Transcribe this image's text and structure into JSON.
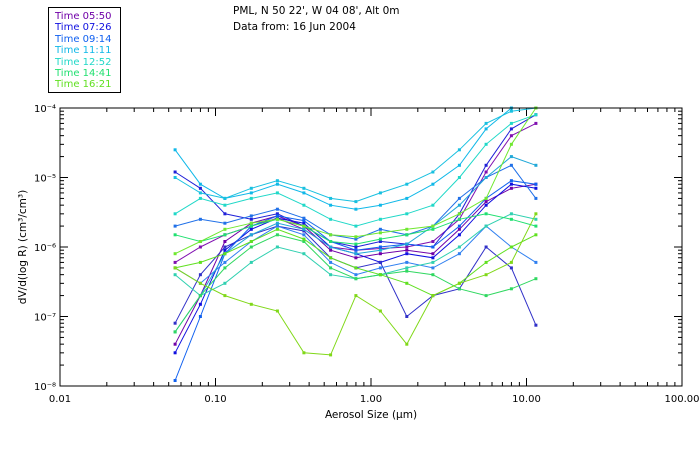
{
  "header": {
    "site": "PML, N 50 22', W 04 08', Alt 0m",
    "date": "Data from: 16 Jun 2004"
  },
  "legend": [
    {
      "label": "Time 05:50",
      "color": "#7000a8"
    },
    {
      "label": "Time 07:26",
      "color": "#1010e0"
    },
    {
      "label": "Time 09:14",
      "color": "#1060f0"
    },
    {
      "label": "Time 11:11",
      "color": "#10b8e8"
    },
    {
      "label": "Time 12:52",
      "color": "#20d8c8"
    },
    {
      "label": "Time 14:41",
      "color": "#20e070"
    },
    {
      "label": "Time 16:21",
      "color": "#60e020"
    }
  ],
  "chart_data": {
    "type": "line",
    "xscale": "log",
    "yscale": "log",
    "xlim": [
      0.01,
      100
    ],
    "ylim": [
      1e-08,
      0.0001
    ],
    "xlabel": "Aerosol Size (μm)",
    "ylabel": "dV/d(log R) (cm³/cm³)",
    "x_ticks": [
      {
        "value": 0.01,
        "label": "0.01"
      },
      {
        "value": 0.1,
        "label": "0.10"
      },
      {
        "value": 1,
        "label": "1.00"
      },
      {
        "value": 10,
        "label": "10.00"
      },
      {
        "value": 100,
        "label": "100.00"
      }
    ],
    "y_ticks": [
      {
        "value": 1e-08,
        "label": "10⁻⁸"
      },
      {
        "value": 1e-07,
        "label": "10⁻⁷"
      },
      {
        "value": 1e-06,
        "label": "10⁻⁶"
      },
      {
        "value": 1e-05,
        "label": "10⁻⁵"
      },
      {
        "value": 0.0001,
        "label": "10⁻⁴"
      }
    ],
    "x": [
      0.055,
      0.08,
      0.115,
      0.17,
      0.25,
      0.37,
      0.55,
      0.8,
      1.15,
      1.7,
      2.5,
      3.7,
      5.5,
      8.0,
      11.5
    ],
    "series": [
      {
        "name": "Time 05:50",
        "color": "#7000a8",
        "values": [
          4e-08,
          2e-07,
          1.2e-06,
          2.2e-06,
          2.8e-06,
          2e-06,
          9e-07,
          7e-07,
          8e-07,
          9e-07,
          8e-07,
          1.8e-06,
          4.5e-06,
          7e-06,
          8e-06
        ]
      },
      {
        "name": "Time 05:50",
        "color": "#8010b0",
        "values": [
          6e-07,
          1e-06,
          1.5e-06,
          2e-06,
          2.6e-06,
          1.8e-06,
          1e-06,
          9e-07,
          9.5e-07,
          1e-06,
          1.2e-06,
          2.5e-06,
          1.2e-05,
          4e-05,
          6e-05
        ]
      },
      {
        "name": "Time 07:26",
        "color": "#1010e0",
        "values": [
          3e-08,
          1.5e-07,
          9e-07,
          1.8e-06,
          2.6e-06,
          2.2e-06,
          1e-06,
          8e-07,
          6e-07,
          8e-07,
          7e-07,
          1.5e-06,
          4e-06,
          8e-06,
          7e-06
        ]
      },
      {
        "name": "Time 07:26",
        "color": "#2020d8",
        "values": [
          1.2e-05,
          7e-06,
          3e-06,
          2.5e-06,
          3e-06,
          2e-06,
          1.2e-06,
          1e-06,
          1.2e-06,
          1.1e-06,
          1e-06,
          3e-06,
          1.5e-05,
          5e-05,
          8e-05
        ]
      },
      {
        "name": "Time 07:26",
        "color": "#3030c8",
        "values": [
          8e-08,
          4e-07,
          1e-06,
          1.5e-06,
          2e-06,
          1.7e-06,
          7e-07,
          5e-07,
          6e-07,
          1e-07,
          2e-07,
          2.5e-07,
          1e-06,
          5e-07,
          7.5e-08
        ]
      },
      {
        "name": "Time 09:14",
        "color": "#1060f0",
        "values": [
          1.2e-08,
          1e-07,
          8e-07,
          2e-06,
          2.8e-06,
          2.4e-06,
          1.2e-06,
          9e-07,
          1e-06,
          1.1e-06,
          1e-06,
          2e-06,
          5e-06,
          9e-06,
          8e-06
        ]
      },
      {
        "name": "Time 09:14",
        "color": "#2070e8",
        "values": [
          2e-06,
          2.5e-06,
          2.2e-06,
          2.8e-06,
          3.5e-06,
          2.6e-06,
          1.5e-06,
          1.3e-06,
          1.8e-06,
          1.5e-06,
          2e-06,
          5e-06,
          1e-05,
          1.5e-05,
          5e-06
        ]
      },
      {
        "name": "Time 09:14",
        "color": "#3080f0",
        "values": [
          5e-07,
          3e-07,
          6e-07,
          1.2e-06,
          2e-06,
          1.5e-06,
          6e-07,
          4e-07,
          5e-07,
          6e-07,
          5e-07,
          8e-07,
          2e-06,
          1e-06,
          6e-07
        ]
      },
      {
        "name": "Time 11:11",
        "color": "#10b8e8",
        "values": [
          2.5e-05,
          8e-06,
          5e-06,
          6e-06,
          8e-06,
          6e-06,
          4e-06,
          3.5e-06,
          4e-06,
          5e-06,
          8e-06,
          1.5e-05,
          5e-05,
          0.0001,
          0.0001
        ]
      },
      {
        "name": "Time 11:11",
        "color": "#18c0e0",
        "values": [
          1e-05,
          6e-06,
          5e-06,
          7e-06,
          9e-06,
          7e-06,
          5e-06,
          4.5e-06,
          6e-06,
          8e-06,
          1.2e-05,
          2.5e-05,
          6e-05,
          9e-05,
          0.0001
        ]
      },
      {
        "name": "Time 11:11",
        "color": "#20a8d8",
        "values": [
          6e-08,
          2e-07,
          8e-07,
          1.5e-06,
          2.2e-06,
          1.8e-06,
          1e-06,
          8e-07,
          9e-07,
          1.1e-06,
          2e-06,
          4e-06,
          1e-05,
          2e-05,
          1.5e-05
        ]
      },
      {
        "name": "Time 12:52",
        "color": "#20d8c8",
        "values": [
          3e-06,
          5e-06,
          4e-06,
          5e-06,
          6e-06,
          4e-06,
          2.5e-06,
          2e-06,
          2.5e-06,
          3e-06,
          4e-06,
          1e-05,
          3e-05,
          6e-05,
          8e-05
        ]
      },
      {
        "name": "Time 12:52",
        "color": "#30d0b0",
        "values": [
          4e-07,
          2e-07,
          3e-07,
          6e-07,
          1e-06,
          8e-07,
          4e-07,
          3.5e-07,
          4e-07,
          5e-07,
          6e-07,
          1e-06,
          2e-06,
          3e-06,
          2.5e-06
        ]
      },
      {
        "name": "Time 14:41",
        "color": "#20e070",
        "values": [
          1.5e-06,
          1.2e-06,
          1.5e-06,
          2e-06,
          2.5e-06,
          2e-06,
          1.2e-06,
          1.1e-06,
          1.3e-06,
          1.5e-06,
          1.8e-06,
          2.5e-06,
          3e-06,
          2.5e-06,
          2e-06
        ]
      },
      {
        "name": "Time 14:41",
        "color": "#30d860",
        "values": [
          6e-08,
          2e-07,
          5e-07,
          1e-06,
          1.5e-06,
          1.2e-06,
          5e-07,
          3.5e-07,
          4e-07,
          4.5e-07,
          4e-07,
          2.5e-07,
          2e-07,
          2.5e-07,
          3.5e-07
        ]
      },
      {
        "name": "Time 16:21",
        "color": "#60e020",
        "values": [
          5e-07,
          6e-07,
          8e-07,
          1.2e-06,
          1.8e-06,
          1.3e-06,
          7e-07,
          5e-07,
          4e-07,
          3e-07,
          2e-07,
          3e-07,
          6e-07,
          1e-06,
          1.5e-06
        ]
      },
      {
        "name": "Time 16:21",
        "color": "#80d818",
        "values": [
          5e-07,
          3e-07,
          2e-07,
          1.5e-07,
          1.2e-07,
          3e-08,
          2.8e-08,
          2e-07,
          1.2e-07,
          4e-08,
          2e-07,
          3e-07,
          4e-07,
          6e-07,
          3e-06
        ]
      },
      {
        "name": "Time 16:21",
        "color": "#70e830",
        "values": [
          8e-07,
          1.2e-06,
          1.8e-06,
          2.2e-06,
          2.5e-06,
          2e-06,
          1.5e-06,
          1.4e-06,
          1.6e-06,
          1.8e-06,
          2e-06,
          3e-06,
          5e-06,
          3e-05,
          0.0001
        ]
      }
    ]
  }
}
